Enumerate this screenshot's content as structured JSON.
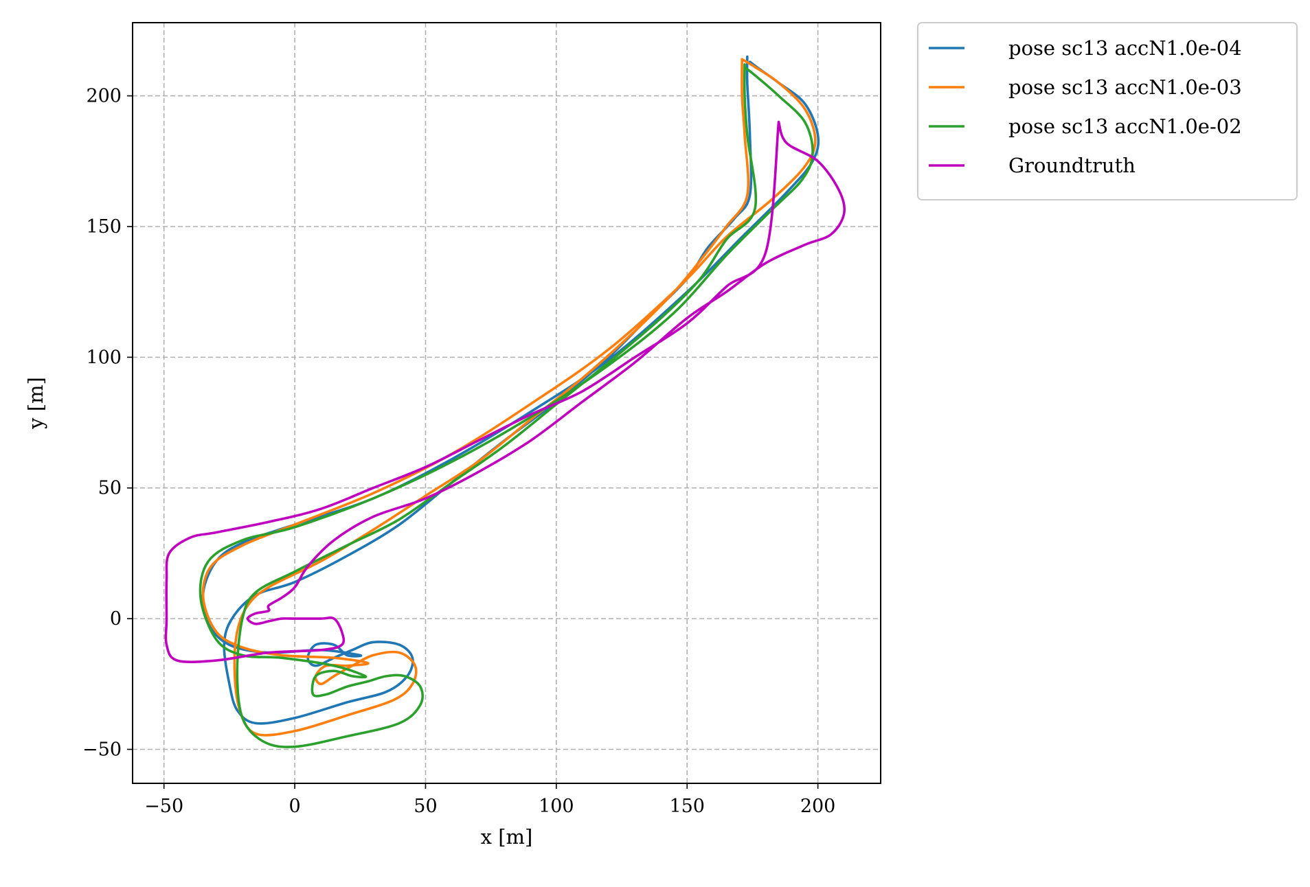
{
  "chart_data": {
    "type": "line",
    "title": "",
    "xlabel": "x [m]",
    "ylabel": "y [m]",
    "xlim": [
      -62,
      224
    ],
    "ylim": [
      -63,
      228
    ],
    "xticks": [
      -50,
      0,
      50,
      100,
      150,
      200
    ],
    "yticks": [
      -50,
      0,
      50,
      100,
      150,
      200
    ],
    "xtick_labels": [
      "−50",
      "0",
      "50",
      "100",
      "150",
      "200"
    ],
    "ytick_labels": [
      "−50",
      "0",
      "50",
      "100",
      "150",
      "200"
    ],
    "grid": true,
    "legend_position": "outside upper right",
    "series": [
      {
        "name": "pose sc13 accN1.0e-04",
        "color": "#1f77b4",
        "points": [
          [
            173,
            215
          ],
          [
            173,
            205
          ],
          [
            174,
            185
          ],
          [
            174,
            162
          ],
          [
            168,
            153
          ],
          [
            158,
            142
          ],
          [
            150,
            130
          ],
          [
            135,
            115
          ],
          [
            120,
            100
          ],
          [
            100,
            83
          ],
          [
            80,
            68
          ],
          [
            60,
            52
          ],
          [
            40,
            36
          ],
          [
            20,
            24
          ],
          [
            0,
            14
          ],
          [
            -15,
            9
          ],
          [
            -24,
            0
          ],
          [
            -27,
            -10
          ],
          [
            -25,
            -25
          ],
          [
            -22,
            -35
          ],
          [
            -15,
            -40
          ],
          [
            0,
            -38
          ],
          [
            20,
            -32
          ],
          [
            35,
            -28
          ],
          [
            43,
            -22
          ],
          [
            45,
            -15
          ],
          [
            40,
            -10
          ],
          [
            30,
            -9
          ],
          [
            22,
            -12
          ],
          [
            15,
            -15
          ],
          [
            8,
            -18
          ],
          [
            5,
            -15
          ],
          [
            8,
            -10
          ],
          [
            15,
            -10
          ],
          [
            20,
            -14
          ],
          [
            25,
            -14
          ],
          [
            10,
            -12
          ],
          [
            -10,
            -13
          ],
          [
            -25,
            -10
          ],
          [
            -33,
            -2
          ],
          [
            -35,
            10
          ],
          [
            -30,
            22
          ],
          [
            -20,
            29
          ],
          [
            0,
            36
          ],
          [
            30,
            46
          ],
          [
            60,
            61
          ],
          [
            90,
            79
          ],
          [
            120,
            99
          ],
          [
            150,
            125
          ],
          [
            170,
            145
          ],
          [
            188,
            163
          ],
          [
            198,
            175
          ],
          [
            200,
            185
          ],
          [
            195,
            197
          ],
          [
            185,
            205
          ],
          [
            178,
            210
          ],
          [
            174,
            213
          ]
        ]
      },
      {
        "name": "pose sc13 accN1.0e-03",
        "color": "#ff7f0e",
        "points": [
          [
            171,
            214
          ],
          [
            171,
            200
          ],
          [
            172,
            185
          ],
          [
            173,
            162
          ],
          [
            165,
            150
          ],
          [
            155,
            137
          ],
          [
            145,
            125
          ],
          [
            130,
            110
          ],
          [
            110,
            92
          ],
          [
            90,
            76
          ],
          [
            70,
            60
          ],
          [
            50,
            47
          ],
          [
            30,
            34
          ],
          [
            10,
            22
          ],
          [
            -10,
            12
          ],
          [
            -18,
            5
          ],
          [
            -22,
            -5
          ],
          [
            -23,
            -20
          ],
          [
            -21,
            -35
          ],
          [
            -15,
            -44
          ],
          [
            0,
            -43
          ],
          [
            20,
            -37
          ],
          [
            38,
            -31
          ],
          [
            45,
            -25
          ],
          [
            46,
            -18
          ],
          [
            40,
            -13
          ],
          [
            30,
            -14
          ],
          [
            22,
            -18
          ],
          [
            15,
            -22
          ],
          [
            10,
            -25
          ],
          [
            8,
            -22
          ],
          [
            12,
            -18
          ],
          [
            20,
            -18
          ],
          [
            28,
            -17
          ],
          [
            15,
            -15
          ],
          [
            -5,
            -14
          ],
          [
            -20,
            -11
          ],
          [
            -30,
            -5
          ],
          [
            -35,
            8
          ],
          [
            -32,
            20
          ],
          [
            -20,
            28
          ],
          [
            0,
            36
          ],
          [
            30,
            48
          ],
          [
            60,
            63
          ],
          [
            90,
            82
          ],
          [
            120,
            103
          ],
          [
            148,
            128
          ],
          [
            165,
            146
          ],
          [
            182,
            160
          ],
          [
            195,
            173
          ],
          [
            199,
            183
          ],
          [
            195,
            195
          ],
          [
            185,
            205
          ],
          [
            176,
            211
          ],
          [
            171,
            214
          ]
        ]
      },
      {
        "name": "pose sc13 accN1.0e-02",
        "color": "#2ca02c",
        "points": [
          [
            172,
            212
          ],
          [
            172,
            200
          ],
          [
            173,
            185
          ],
          [
            176,
            157
          ],
          [
            165,
            145
          ],
          [
            155,
            130
          ],
          [
            140,
            115
          ],
          [
            120,
            98
          ],
          [
            100,
            82
          ],
          [
            80,
            66
          ],
          [
            60,
            52
          ],
          [
            40,
            38
          ],
          [
            20,
            28
          ],
          [
            0,
            18
          ],
          [
            -15,
            10
          ],
          [
            -20,
            0
          ],
          [
            -22,
            -20
          ],
          [
            -20,
            -38
          ],
          [
            -12,
            -47
          ],
          [
            0,
            -49
          ],
          [
            20,
            -45
          ],
          [
            40,
            -40
          ],
          [
            48,
            -33
          ],
          [
            48,
            -26
          ],
          [
            42,
            -22
          ],
          [
            35,
            -22
          ],
          [
            28,
            -24
          ],
          [
            20,
            -26
          ],
          [
            12,
            -29
          ],
          [
            7,
            -29
          ],
          [
            8,
            -22
          ],
          [
            15,
            -20
          ],
          [
            22,
            -22
          ],
          [
            27,
            -22
          ],
          [
            15,
            -18
          ],
          [
            -5,
            -15
          ],
          [
            -20,
            -14
          ],
          [
            -30,
            -8
          ],
          [
            -36,
            8
          ],
          [
            -33,
            22
          ],
          [
            -20,
            30
          ],
          [
            0,
            35
          ],
          [
            30,
            46
          ],
          [
            60,
            60
          ],
          [
            90,
            77
          ],
          [
            120,
            97
          ],
          [
            145,
            117
          ],
          [
            165,
            139
          ],
          [
            182,
            156
          ],
          [
            194,
            168
          ],
          [
            198,
            178
          ],
          [
            195,
            190
          ],
          [
            185,
            200
          ],
          [
            177,
            207
          ],
          [
            172,
            211
          ]
        ]
      },
      {
        "name": "Groundtruth",
        "color": "#bf00bf",
        "points": [
          [
            185,
            190
          ],
          [
            188,
            182
          ],
          [
            200,
            175
          ],
          [
            208,
            164
          ],
          [
            210,
            155
          ],
          [
            205,
            147
          ],
          [
            195,
            143
          ],
          [
            180,
            136
          ],
          [
            165,
            125
          ],
          [
            150,
            115
          ],
          [
            130,
            98
          ],
          [
            110,
            83
          ],
          [
            90,
            68
          ],
          [
            70,
            56
          ],
          [
            50,
            46
          ],
          [
            30,
            39
          ],
          [
            15,
            30
          ],
          [
            5,
            20
          ],
          [
            0,
            12
          ],
          [
            -5,
            8
          ],
          [
            -10,
            5
          ],
          [
            -10,
            3
          ],
          [
            -15,
            2
          ],
          [
            -18,
            0
          ],
          [
            -15,
            -2
          ],
          [
            -10,
            -1
          ],
          [
            -5,
            0
          ],
          [
            0,
            0
          ],
          [
            10,
            0
          ],
          [
            15,
            0
          ],
          [
            18,
            -5
          ],
          [
            18,
            -10
          ],
          [
            10,
            -12
          ],
          [
            -10,
            -13
          ],
          [
            -30,
            -16
          ],
          [
            -45,
            -16
          ],
          [
            -49,
            -10
          ],
          [
            -49,
            0
          ],
          [
            -49,
            15
          ],
          [
            -48,
            25
          ],
          [
            -40,
            31
          ],
          [
            -30,
            33
          ],
          [
            -10,
            37
          ],
          [
            10,
            42
          ],
          [
            30,
            50
          ],
          [
            50,
            58
          ],
          [
            70,
            68
          ],
          [
            90,
            78
          ],
          [
            110,
            87
          ],
          [
            130,
            100
          ],
          [
            150,
            113
          ],
          [
            165,
            127
          ],
          [
            180,
            140
          ],
          [
            185,
            190
          ]
        ]
      }
    ]
  }
}
